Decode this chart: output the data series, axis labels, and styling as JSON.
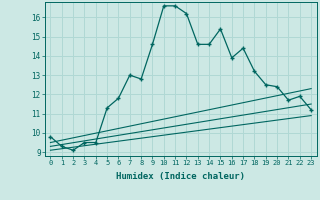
{
  "xlabel": "Humidex (Indice chaleur)",
  "background_color": "#cce8e4",
  "grid_color": "#b0d8d4",
  "line_color": "#006660",
  "xlim": [
    -0.5,
    23.5
  ],
  "ylim": [
    8.8,
    16.8
  ],
  "xtick_labels": [
    "0",
    "1",
    "2",
    "3",
    "4",
    "5",
    "6",
    "7",
    "8",
    "9",
    "10",
    "11",
    "12",
    "13",
    "14",
    "15",
    "16",
    "17",
    "18",
    "19",
    "20",
    "21",
    "22",
    "23"
  ],
  "ytick_vals": [
    9,
    10,
    11,
    12,
    13,
    14,
    15,
    16
  ],
  "main_x": [
    0,
    1,
    2,
    3,
    4,
    5,
    6,
    7,
    8,
    9,
    10,
    11,
    12,
    13,
    14,
    15,
    16,
    17,
    18,
    19,
    20,
    21,
    22,
    23
  ],
  "main_y": [
    9.8,
    9.3,
    9.1,
    9.5,
    9.5,
    11.3,
    11.8,
    13.0,
    12.8,
    14.6,
    16.6,
    16.6,
    16.2,
    14.6,
    14.6,
    15.4,
    13.9,
    14.4,
    13.2,
    12.5,
    12.4,
    11.7,
    11.9,
    11.2
  ],
  "line1_x": [
    0,
    23
  ],
  "line1_y": [
    9.5,
    12.3
  ],
  "line2_x": [
    0,
    23
  ],
  "line2_y": [
    9.3,
    11.5
  ],
  "line3_x": [
    0,
    23
  ],
  "line3_y": [
    9.1,
    10.9
  ]
}
